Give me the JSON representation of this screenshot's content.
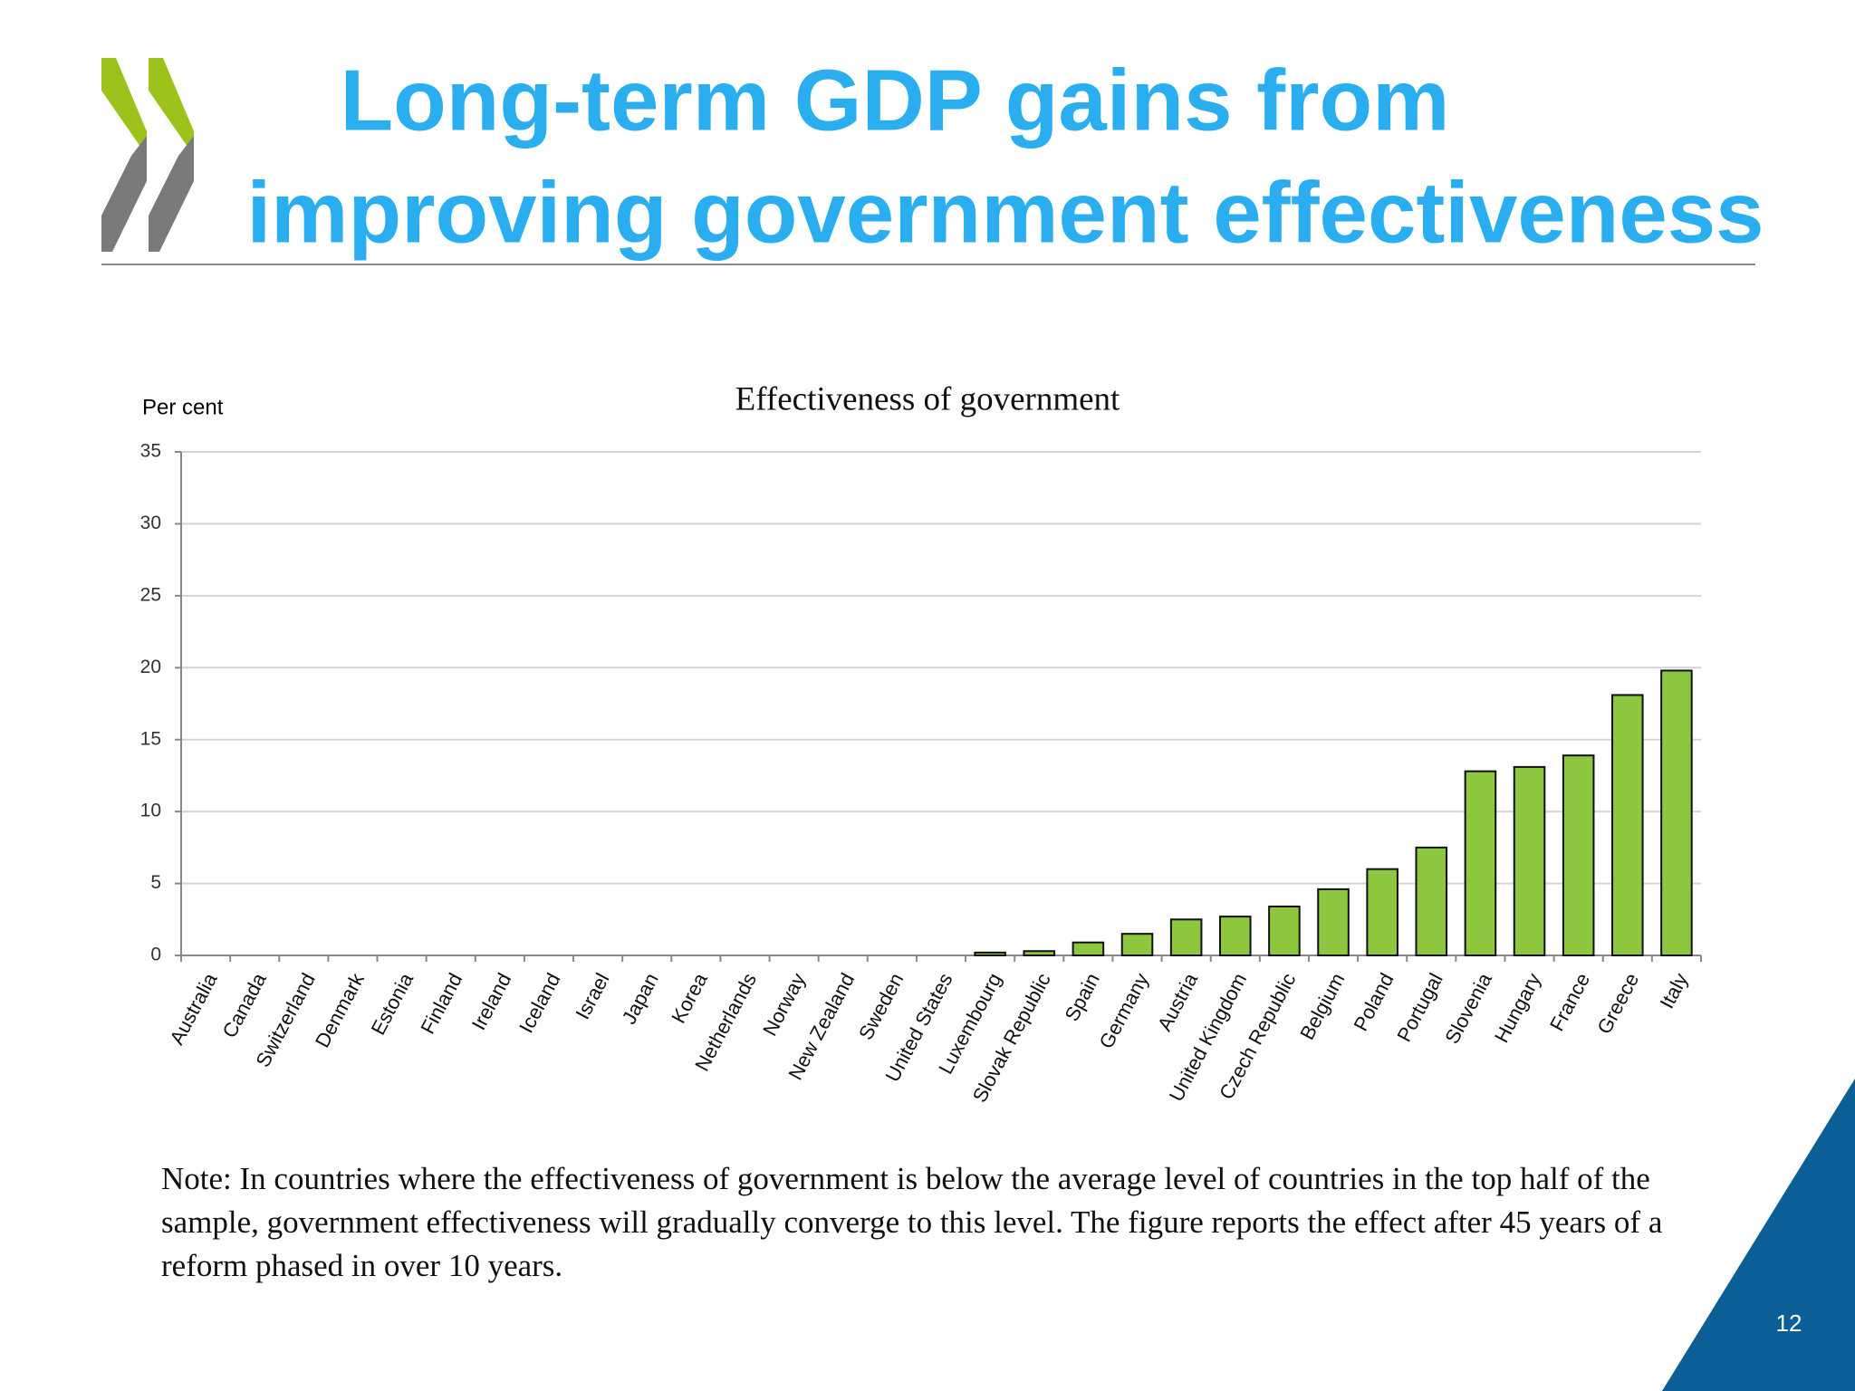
{
  "slide": {
    "title_lines": [
      "Long-term GDP gains from",
      "improving government effectiveness"
    ],
    "note": "Note: In countries where the effectiveness of government is below the average level of countries in the top half of the sample, government effectiveness will gradually converge to this level. The figure reports the effect after 45 years of a reform phased in over 10 years.",
    "page_number": "12"
  },
  "chart_data": {
    "type": "bar",
    "title": "Effectiveness of government",
    "y_label": "Per cent",
    "categories": [
      "Australia",
      "Canada",
      "Switzerland",
      "Denmark",
      "Estonia",
      "Finland",
      "Ireland",
      "Iceland",
      "Israel",
      "Japan",
      "Korea",
      "Netherlands",
      "Norway",
      "New Zealand",
      "Sweden",
      "United States",
      "Luxembourg",
      "Slovak Republic",
      "Spain",
      "Germany",
      "Austria",
      "United Kingdom",
      "Czech Republic",
      "Belgium",
      "Poland",
      "Portugal",
      "Slovenia",
      "Hungary",
      "France",
      "Greece",
      "Italy"
    ],
    "values": [
      0,
      0,
      0,
      0,
      0,
      0,
      0,
      0,
      0,
      0,
      0,
      0,
      0,
      0,
      0,
      0,
      0.2,
      0.3,
      0.9,
      1.5,
      2.5,
      2.7,
      3.4,
      4.6,
      6.0,
      7.5,
      12.8,
      13.1,
      13.9,
      18.1,
      19.8
    ],
    "color": "#8dc63f",
    "ylim": [
      0,
      35
    ],
    "yticks": [
      0,
      5,
      10,
      15,
      20,
      25,
      30,
      35
    ],
    "grid": true
  }
}
